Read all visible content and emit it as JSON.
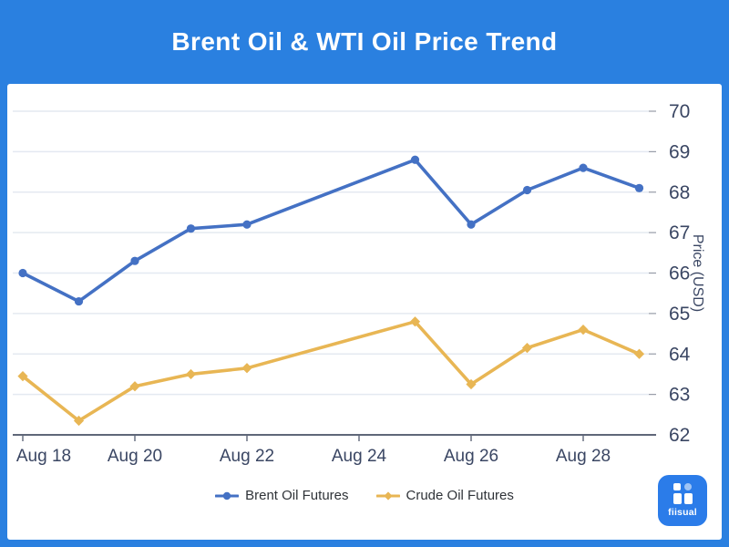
{
  "header": {
    "title": "Brent Oil & WTI Oil Price Trend"
  },
  "colors": {
    "background": "#2a80e0",
    "title": "#ffffff",
    "card": "#ffffff",
    "grid": "#e4e9f1",
    "axis": "#5f6779",
    "tick_label": "#3a4663",
    "legend_text": "#2f3338",
    "logo_bg": "#2b7ce9"
  },
  "chart_data": {
    "type": "line",
    "title": "Brent Oil & WTI Oil Price Trend",
    "xlabel": "",
    "ylabel": "Price (USD)",
    "ylim": [
      62,
      70
    ],
    "y_ticks": [
      70,
      69,
      68,
      67,
      66,
      65,
      64,
      63,
      62
    ],
    "grid": true,
    "legend_position": "bottom",
    "x_dates": [
      "Aug 18",
      "Aug 19",
      "Aug 20",
      "Aug 21",
      "Aug 22",
      "Aug 25",
      "Aug 26",
      "Aug 27",
      "Aug 28",
      "Aug 29"
    ],
    "x_day_index": [
      0,
      1,
      2,
      3,
      4,
      7,
      8,
      9,
      10,
      11
    ],
    "x_axis_ticks": [
      {
        "label": "Aug 18",
        "day_index": 0
      },
      {
        "label": "Aug 20",
        "day_index": 2
      },
      {
        "label": "Aug 22",
        "day_index": 4
      },
      {
        "label": "Aug 24",
        "day_index": 6
      },
      {
        "label": "Aug 26",
        "day_index": 8
      },
      {
        "label": "Aug 28",
        "day_index": 10
      }
    ],
    "series": [
      {
        "name": "Brent Oil Futures",
        "color": "#4471c4",
        "marker": "circle",
        "values": [
          66.0,
          65.3,
          66.3,
          67.1,
          67.2,
          68.8,
          67.2,
          68.05,
          68.6,
          68.1
        ]
      },
      {
        "name": "Crude Oil Futures",
        "color": "#e8b654",
        "marker": "diamond",
        "values": [
          63.45,
          62.35,
          63.2,
          63.5,
          63.65,
          64.8,
          63.25,
          64.15,
          64.6,
          64.0
        ]
      }
    ]
  },
  "logo": {
    "name": "fiisual"
  }
}
